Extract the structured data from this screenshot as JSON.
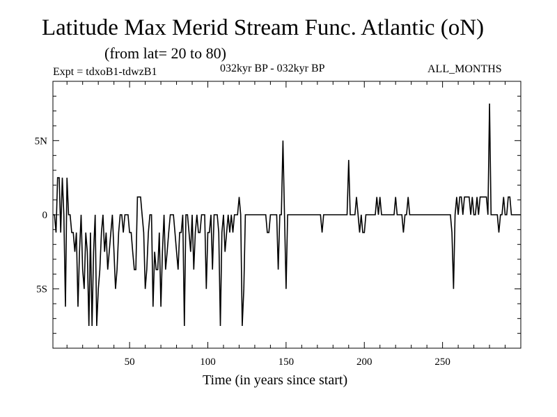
{
  "chart_data": {
    "type": "line",
    "title": "Latitude Max Merid Stream Func. Atlantic (oN)",
    "subtitle": "(from lat= 20 to 80)",
    "experiment": "Expt = tdxoB1-tdwzB1",
    "period": "032kyr BP - 032kyr BP",
    "months": "ALL_MONTHS",
    "xlabel": "Time (in years since start)",
    "ylabel": "",
    "xlim": [
      1,
      300
    ],
    "ylim": [
      -9,
      9
    ],
    "xticks": [
      {
        "value": 50,
        "label": "50"
      },
      {
        "value": 100,
        "label": "100"
      },
      {
        "value": 150,
        "label": "150"
      },
      {
        "value": 200,
        "label": "200"
      },
      {
        "value": 250,
        "label": "250"
      }
    ],
    "yticks": [
      {
        "value": 5,
        "label": "5N"
      },
      {
        "value": 0,
        "label": "0"
      },
      {
        "value": -5,
        "label": "5S"
      }
    ],
    "series": [
      {
        "name": "max_merid_stream_func_lat",
        "color": "#000000",
        "points": [
          [
            1,
            0
          ],
          [
            2,
            0
          ],
          [
            3,
            -1.2
          ],
          [
            4,
            2.5
          ],
          [
            5,
            2.5
          ],
          [
            6,
            -1.2
          ],
          [
            7,
            2.5
          ],
          [
            8,
            0
          ],
          [
            9,
            -6.2
          ],
          [
            10,
            2.5
          ],
          [
            11,
            0
          ],
          [
            12,
            0
          ],
          [
            13,
            -1.2
          ],
          [
            14,
            -1.2
          ],
          [
            15,
            -2.5
          ],
          [
            16,
            -1.2
          ],
          [
            17,
            -6.2
          ],
          [
            18,
            -2.5
          ],
          [
            19,
            0
          ],
          [
            20,
            -3.7
          ],
          [
            21,
            -5
          ],
          [
            22,
            -1.2
          ],
          [
            23,
            -2.5
          ],
          [
            24,
            -7.5
          ],
          [
            25,
            -1.2
          ],
          [
            26,
            -7.5
          ],
          [
            27,
            -2.5
          ],
          [
            28,
            0
          ],
          [
            29,
            -7.5
          ],
          [
            30,
            -5
          ],
          [
            31,
            -3.7
          ],
          [
            32,
            -1.2
          ],
          [
            33,
            0
          ],
          [
            34,
            -2.5
          ],
          [
            35,
            -1.2
          ],
          [
            36,
            -3.7
          ],
          [
            37,
            -2.5
          ],
          [
            38,
            -1.2
          ],
          [
            39,
            0
          ],
          [
            40,
            -2.5
          ],
          [
            41,
            -5
          ],
          [
            42,
            -3.7
          ],
          [
            43,
            -1.2
          ],
          [
            44,
            0
          ],
          [
            45,
            0
          ],
          [
            46,
            -1.2
          ],
          [
            47,
            0
          ],
          [
            48,
            0
          ],
          [
            49,
            0
          ],
          [
            50,
            -1.2
          ],
          [
            51,
            -1.2
          ],
          [
            52,
            -2.5
          ],
          [
            53,
            -3.7
          ],
          [
            54,
            -3.7
          ],
          [
            55,
            1.2
          ],
          [
            56,
            1.2
          ],
          [
            57,
            1.2
          ],
          [
            58,
            0
          ],
          [
            59,
            -1.2
          ],
          [
            60,
            -5
          ],
          [
            61,
            -3.7
          ],
          [
            62,
            -1.2
          ],
          [
            63,
            0
          ],
          [
            64,
            0
          ],
          [
            65,
            -6.2
          ],
          [
            66,
            -2.5
          ],
          [
            67,
            -3.7
          ],
          [
            68,
            -3.7
          ],
          [
            69,
            -1.2
          ],
          [
            70,
            -6.2
          ],
          [
            71,
            -2.5
          ],
          [
            72,
            0
          ],
          [
            73,
            -3.7
          ],
          [
            74,
            -2.5
          ],
          [
            75,
            -1.2
          ],
          [
            76,
            0
          ],
          [
            77,
            0
          ],
          [
            78,
            0
          ],
          [
            79,
            -1.2
          ],
          [
            80,
            -2.5
          ],
          [
            81,
            -3.7
          ],
          [
            82,
            -1.2
          ],
          [
            83,
            -1.2
          ],
          [
            84,
            0
          ],
          [
            85,
            -7.5
          ],
          [
            86,
            0
          ],
          [
            87,
            0
          ],
          [
            88,
            -1.2
          ],
          [
            89,
            -2.5
          ],
          [
            90,
            0
          ],
          [
            91,
            -3.7
          ],
          [
            92,
            -1.2
          ],
          [
            93,
            0
          ],
          [
            94,
            -1.2
          ],
          [
            95,
            -1.2
          ],
          [
            96,
            0
          ],
          [
            97,
            0
          ],
          [
            98,
            0
          ],
          [
            99,
            -5
          ],
          [
            100,
            -1.2
          ],
          [
            101,
            -1.2
          ],
          [
            102,
            0
          ],
          [
            103,
            -3.7
          ],
          [
            104,
            0
          ],
          [
            105,
            0
          ],
          [
            106,
            0
          ],
          [
            107,
            -1.2
          ],
          [
            108,
            -7.5
          ],
          [
            109,
            -1.2
          ],
          [
            110,
            0
          ],
          [
            111,
            -2.5
          ],
          [
            112,
            -1.2
          ],
          [
            113,
            0
          ],
          [
            114,
            -1.2
          ],
          [
            115,
            0
          ],
          [
            116,
            -1.2
          ],
          [
            117,
            0
          ],
          [
            118,
            0
          ],
          [
            119,
            0
          ],
          [
            120,
            1.2
          ],
          [
            121,
            0
          ],
          [
            122,
            -7.5
          ],
          [
            123,
            -5
          ],
          [
            124,
            0
          ],
          [
            125,
            0
          ],
          [
            126,
            0
          ],
          [
            127,
            0
          ],
          [
            128,
            0
          ],
          [
            129,
            0
          ],
          [
            130,
            0
          ],
          [
            131,
            0
          ],
          [
            132,
            0
          ],
          [
            133,
            0
          ],
          [
            134,
            0
          ],
          [
            135,
            0
          ],
          [
            136,
            0
          ],
          [
            137,
            0
          ],
          [
            138,
            -1.2
          ],
          [
            139,
            -1.2
          ],
          [
            140,
            0
          ],
          [
            141,
            0
          ],
          [
            142,
            0
          ],
          [
            143,
            0
          ],
          [
            144,
            0
          ],
          [
            145,
            -3.7
          ],
          [
            146,
            0
          ],
          [
            147,
            0
          ],
          [
            148,
            5
          ],
          [
            149,
            0
          ],
          [
            150,
            -5
          ],
          [
            151,
            0
          ],
          [
            152,
            0
          ],
          [
            153,
            0
          ],
          [
            154,
            0
          ],
          [
            155,
            0
          ],
          [
            156,
            0
          ],
          [
            157,
            0
          ],
          [
            158,
            0
          ],
          [
            159,
            0
          ],
          [
            160,
            0
          ],
          [
            161,
            0
          ],
          [
            162,
            0
          ],
          [
            163,
            0
          ],
          [
            164,
            0
          ],
          [
            165,
            0
          ],
          [
            166,
            0
          ],
          [
            167,
            0
          ],
          [
            168,
            0
          ],
          [
            169,
            0
          ],
          [
            170,
            0
          ],
          [
            171,
            0
          ],
          [
            172,
            0
          ],
          [
            173,
            -1.2
          ],
          [
            174,
            0
          ],
          [
            175,
            0
          ],
          [
            176,
            0
          ],
          [
            177,
            0
          ],
          [
            178,
            0
          ],
          [
            179,
            0
          ],
          [
            180,
            0
          ],
          [
            181,
            0
          ],
          [
            182,
            0
          ],
          [
            183,
            0
          ],
          [
            184,
            0
          ],
          [
            185,
            0
          ],
          [
            186,
            0
          ],
          [
            187,
            0
          ],
          [
            188,
            0
          ],
          [
            189,
            0
          ],
          [
            190,
            3.7
          ],
          [
            191,
            0
          ],
          [
            192,
            0
          ],
          [
            193,
            0
          ],
          [
            194,
            0
          ],
          [
            195,
            1.2
          ],
          [
            196,
            0
          ],
          [
            197,
            -1.2
          ],
          [
            198,
            0
          ],
          [
            199,
            -1.2
          ],
          [
            200,
            -1.2
          ],
          [
            201,
            0
          ],
          [
            202,
            0
          ],
          [
            203,
            0
          ],
          [
            204,
            0
          ],
          [
            205,
            0
          ],
          [
            206,
            0
          ],
          [
            207,
            0
          ],
          [
            208,
            1.2
          ],
          [
            209,
            0
          ],
          [
            210,
            1.2
          ],
          [
            211,
            0
          ],
          [
            212,
            0
          ],
          [
            213,
            0
          ],
          [
            214,
            0
          ],
          [
            215,
            0
          ],
          [
            216,
            0
          ],
          [
            217,
            0
          ],
          [
            218,
            0
          ],
          [
            219,
            0
          ],
          [
            220,
            1.2
          ],
          [
            221,
            0
          ],
          [
            222,
            0
          ],
          [
            223,
            0
          ],
          [
            224,
            0
          ],
          [
            225,
            -1.2
          ],
          [
            226,
            0
          ],
          [
            227,
            0
          ],
          [
            228,
            1.2
          ],
          [
            229,
            0
          ],
          [
            230,
            0
          ],
          [
            231,
            0
          ],
          [
            232,
            0
          ],
          [
            233,
            0
          ],
          [
            234,
            0
          ],
          [
            235,
            0
          ],
          [
            236,
            0
          ],
          [
            237,
            0
          ],
          [
            238,
            0
          ],
          [
            239,
            0
          ],
          [
            240,
            0
          ],
          [
            241,
            0
          ],
          [
            242,
            0
          ],
          [
            243,
            0
          ],
          [
            244,
            0
          ],
          [
            245,
            0
          ],
          [
            246,
            0
          ],
          [
            247,
            0
          ],
          [
            248,
            0
          ],
          [
            249,
            0
          ],
          [
            250,
            0
          ],
          [
            251,
            0
          ],
          [
            252,
            0
          ],
          [
            253,
            0
          ],
          [
            254,
            0
          ],
          [
            255,
            0
          ],
          [
            256,
            -1.2
          ],
          [
            257,
            -5
          ],
          [
            258,
            0
          ],
          [
            259,
            1.2
          ],
          [
            260,
            0
          ],
          [
            261,
            1.2
          ],
          [
            262,
            1.2
          ],
          [
            263,
            0
          ],
          [
            264,
            1.2
          ],
          [
            265,
            1.2
          ],
          [
            266,
            1.2
          ],
          [
            267,
            1.2
          ],
          [
            268,
            0
          ],
          [
            269,
            1.2
          ],
          [
            270,
            0
          ],
          [
            271,
            0
          ],
          [
            272,
            1.2
          ],
          [
            273,
            0
          ],
          [
            274,
            1.2
          ],
          [
            275,
            1.2
          ],
          [
            276,
            1.2
          ],
          [
            277,
            1.2
          ],
          [
            278,
            1.2
          ],
          [
            279,
            0
          ],
          [
            280,
            7.5
          ],
          [
            281,
            0
          ],
          [
            282,
            0
          ],
          [
            283,
            0
          ],
          [
            284,
            0
          ],
          [
            285,
            0
          ],
          [
            286,
            -1.2
          ],
          [
            287,
            0
          ],
          [
            288,
            0
          ],
          [
            289,
            1.2
          ],
          [
            290,
            0
          ],
          [
            291,
            0
          ],
          [
            292,
            1.2
          ],
          [
            293,
            1.2
          ],
          [
            294,
            0
          ],
          [
            295,
            0
          ],
          [
            296,
            0
          ],
          [
            297,
            0
          ],
          [
            298,
            0
          ],
          [
            299,
            0
          ],
          [
            300,
            0
          ]
        ]
      }
    ]
  }
}
